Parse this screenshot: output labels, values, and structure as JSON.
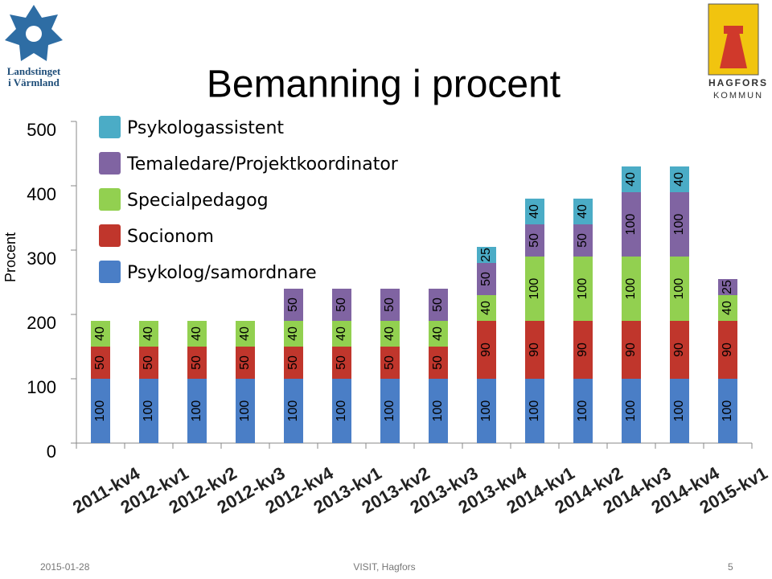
{
  "logos": {
    "left": [
      "Landstinget",
      "i Värmland"
    ],
    "right": [
      "HAGFORS",
      "KOMMUN"
    ]
  },
  "footer": {
    "date": "2015-01-28",
    "center": "VISIT, Hagfors",
    "page": "5"
  },
  "chart_data": {
    "type": "stacked_bar",
    "title": "Bemanning i procent",
    "y_label": "Procent",
    "categories": [
      "2011-kv4",
      "2012-kv1",
      "2012-kv2",
      "2012-kv3",
      "2012-kv4",
      "2013-kv1",
      "2013-kv2",
      "2013-kv3",
      "2013-kv4",
      "2014-kv1",
      "2014-kv2",
      "2014-kv3",
      "2014-kv4",
      "2015-kv1"
    ],
    "series": [
      {
        "name": "Psykolog/samordnare",
        "color": "#4a7ec6",
        "values": [
          100,
          100,
          100,
          100,
          100,
          100,
          100,
          100,
          100,
          100,
          100,
          100,
          100,
          100
        ]
      },
      {
        "name": "Socionom",
        "color": "#c0362c",
        "values": [
          50,
          50,
          50,
          50,
          50,
          50,
          50,
          50,
          90,
          90,
          90,
          90,
          90,
          90
        ]
      },
      {
        "name": "Specialpedagog",
        "color": "#92d050",
        "values": [
          40,
          40,
          40,
          40,
          40,
          40,
          40,
          40,
          40,
          100,
          100,
          100,
          100,
          40
        ]
      },
      {
        "name": "Temaledare/Projektkoordinator",
        "color": "#8064a2",
        "values": [
          null,
          null,
          null,
          null,
          50,
          50,
          50,
          50,
          50,
          50,
          50,
          100,
          100,
          25
        ]
      },
      {
        "name": "Psykologassistent",
        "color": "#4bacc6",
        "values": [
          null,
          null,
          null,
          null,
          null,
          null,
          null,
          null,
          25,
          40,
          40,
          40,
          40,
          null
        ]
      }
    ],
    "ylim": [
      0,
      500
    ],
    "yticks": [
      0,
      100,
      200,
      300,
      400,
      500
    ],
    "legend": "upper-left",
    "data_labels": true
  }
}
